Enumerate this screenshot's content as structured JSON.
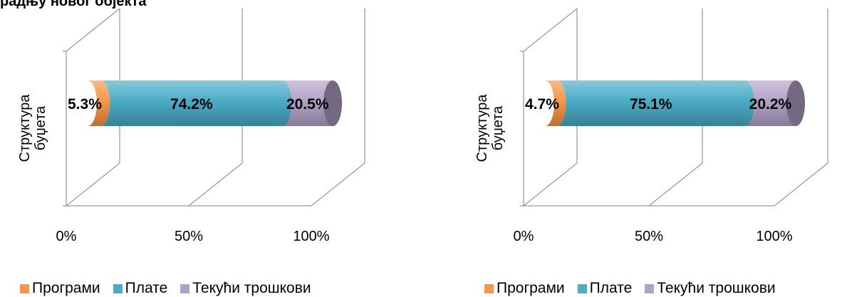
{
  "page": {
    "title": "радњу новог објекта"
  },
  "colors": {
    "programi": "#F79646",
    "plate": "#4BACC6",
    "tekuci": "#B3A2C7",
    "axis": "#7f7f7f"
  },
  "chart_data": [
    {
      "type": "bar",
      "orientation": "horizontal-stacked-100-3d-cylinder",
      "categories": [
        "Структура буџета"
      ],
      "series": [
        {
          "name": "Програми",
          "values": [
            5.3
          ]
        },
        {
          "name": "Плате",
          "values": [
            74.2
          ]
        },
        {
          "name": "Текући трошкови",
          "values": [
            20.5
          ]
        }
      ],
      "data_labels": [
        "5.3%",
        "74.2%",
        "20.5%"
      ],
      "ylabel_lines": [
        "Структура",
        "буџета"
      ],
      "x_ticks": [
        "0%",
        "50%",
        "100%"
      ],
      "xlim": [
        0,
        100
      ],
      "legend": [
        "Програми",
        "Плате",
        "Текући трошкови"
      ],
      "legend_position": "bottom"
    },
    {
      "type": "bar",
      "orientation": "horizontal-stacked-100-3d-cylinder",
      "categories": [
        "Структура буџета"
      ],
      "series": [
        {
          "name": "Програми",
          "values": [
            4.7
          ]
        },
        {
          "name": "Плате",
          "values": [
            75.1
          ]
        },
        {
          "name": "Текући трошкови",
          "values": [
            20.2
          ]
        }
      ],
      "data_labels": [
        "4.7%",
        "75.1%",
        "20.2%"
      ],
      "ylabel_lines": [
        "Структура",
        "буџета"
      ],
      "x_ticks": [
        "0%",
        "50%",
        "100%"
      ],
      "xlim": [
        0,
        100
      ],
      "legend": [
        "Програми",
        "Плате",
        "Текући трошкови"
      ],
      "legend_position": "bottom"
    }
  ]
}
